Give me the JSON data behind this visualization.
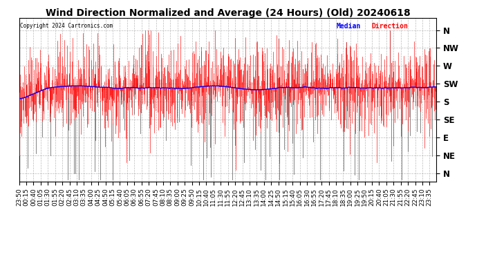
{
  "title": "Wind Direction Normalized and Average (24 Hours) (Old) 20240618",
  "copyright": "Copyright 2024 Cartronics.com",
  "legend_median": "Median",
  "legend_direction": "Direction",
  "bg_color": "#ffffff",
  "plot_bg_color": "#ffffff",
  "grid_color": "#aaaaaa",
  "red_color": "#ff0000",
  "blue_color": "#0000ff",
  "dark_color": "#555555",
  "y_labels": [
    "N",
    "NW",
    "W",
    "SW",
    "S",
    "SE",
    "E",
    "NE",
    "N"
  ],
  "y_ticks": [
    360,
    315,
    270,
    225,
    180,
    135,
    90,
    45,
    0
  ],
  "ylim": [
    -20,
    390
  ],
  "title_fontsize": 10,
  "tick_fontsize": 6.5,
  "label_fontsize": 8.5
}
